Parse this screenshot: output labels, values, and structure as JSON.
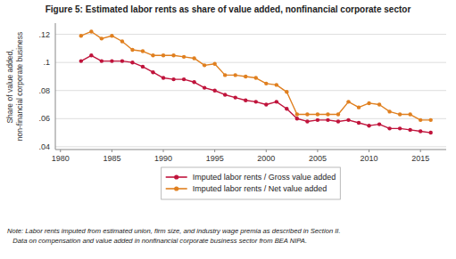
{
  "chart_data": {
    "type": "line",
    "title": "Figure 5: Estimated labor rents as share of value added, nonfinancial corporate sector",
    "ylabel": "Share of value added,\nnon-financial corporate business",
    "note": "Note: Labor rents imputed from estimated union, firm size, and industry wage premia as described in Section II.\n   Data on compensation and value added in nonfinancial corporate business sector from BEA NIPA.",
    "x": [
      1982,
      1983,
      1984,
      1985,
      1986,
      1987,
      1988,
      1989,
      1990,
      1991,
      1992,
      1993,
      1994,
      1995,
      1996,
      1997,
      1998,
      1999,
      2000,
      2001,
      2002,
      2003,
      2004,
      2005,
      2006,
      2007,
      2008,
      2009,
      2010,
      2011,
      2012,
      2013,
      2014,
      2015,
      2016
    ],
    "series": [
      {
        "name": "Imputed labor rents / Gross value added",
        "color": "#c0143c",
        "values": [
          0.101,
          0.105,
          0.101,
          0.101,
          0.101,
          0.1,
          0.097,
          0.093,
          0.089,
          0.088,
          0.088,
          0.086,
          0.082,
          0.08,
          0.077,
          0.075,
          0.073,
          0.072,
          0.07,
          0.072,
          0.067,
          0.06,
          0.058,
          0.059,
          0.059,
          0.058,
          0.059,
          0.057,
          0.055,
          0.056,
          0.053,
          0.053,
          0.052,
          0.051,
          0.05
        ]
      },
      {
        "name": "Imputed labor rents / Net value added",
        "color": "#e08020",
        "values": [
          0.119,
          0.122,
          0.117,
          0.119,
          0.115,
          0.109,
          0.108,
          0.105,
          0.105,
          0.105,
          0.104,
          0.103,
          0.098,
          0.099,
          0.091,
          0.091,
          0.09,
          0.089,
          0.085,
          0.084,
          0.079,
          0.063,
          0.063,
          0.063,
          0.063,
          0.063,
          0.072,
          0.068,
          0.071,
          0.07,
          0.065,
          0.063,
          0.063,
          0.059,
          0.059
        ]
      }
    ],
    "xlim": [
      1979.5,
      2017.5
    ],
    "ylim": [
      0.038,
      0.128
    ],
    "xticks": [
      1980,
      1985,
      1990,
      1995,
      2000,
      2005,
      2010,
      2015
    ],
    "yticks": [
      {
        "value": 0.04,
        "label": ".04"
      },
      {
        "value": 0.06,
        "label": ".06"
      },
      {
        "value": 0.08,
        "label": ".08"
      },
      {
        "value": 0.1,
        "label": ".1"
      },
      {
        "value": 0.12,
        "label": ".12"
      }
    ],
    "grid": true,
    "legend": "bottom",
    "marker": "circle"
  }
}
